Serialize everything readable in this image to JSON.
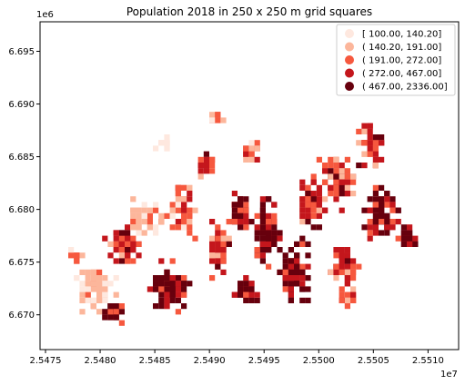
{
  "chart_data": {
    "type": "heatmap",
    "title": "Population 2018 in 250 x 250 m grid squares",
    "xlabel": "",
    "ylabel": "",
    "x_offset_label": "1e7",
    "y_offset_label": "1e6",
    "xlim": [
      2.54745,
      2.55128
    ],
    "ylim": [
      6.6667,
      6.6978
    ],
    "x_ticks": [
      {
        "value": 2.5475,
        "label": "2.5475"
      },
      {
        "value": 2.548,
        "label": "2.5480"
      },
      {
        "value": 2.5485,
        "label": "2.5485"
      },
      {
        "value": 2.549,
        "label": "2.5490"
      },
      {
        "value": 2.5495,
        "label": "2.5495"
      },
      {
        "value": 2.55,
        "label": "2.5500"
      },
      {
        "value": 2.5505,
        "label": "2.5505"
      },
      {
        "value": 2.551,
        "label": "2.5510"
      }
    ],
    "y_ticks": [
      {
        "value": 6.67,
        "label": "6.670"
      },
      {
        "value": 6.675,
        "label": "6.675"
      },
      {
        "value": 6.68,
        "label": "6.680"
      },
      {
        "value": 6.685,
        "label": "6.685"
      },
      {
        "value": 6.69,
        "label": "6.690"
      },
      {
        "value": 6.695,
        "label": "6.695"
      }
    ],
    "grid": false,
    "legend_position": "top-right",
    "legend": [
      {
        "label": "[ 100.00,  140.20]",
        "color": "#fee8df"
      },
      {
        "label": "( 140.20,  191.00]",
        "color": "#fcb69b"
      },
      {
        "label": "( 191.00,  272.00]",
        "color": "#f6583e"
      },
      {
        "label": "( 272.00,  467.00]",
        "color": "#c4161c"
      },
      {
        "label": "( 467.00, 2336.00]",
        "color": "#67000d"
      }
    ],
    "clusters": [
      {
        "x": 2.54775,
        "y": 6.6757,
        "spread_x": 6e-05,
        "spread_y": 0.0008,
        "count": 10,
        "dominant_class": 2
      },
      {
        "x": 2.54795,
        "y": 6.6725,
        "spread_x": 0.00022,
        "spread_y": 0.003,
        "count": 70,
        "dominant_class": 1
      },
      {
        "x": 2.5481,
        "y": 6.6705,
        "spread_x": 0.00012,
        "spread_y": 0.0012,
        "count": 30,
        "dominant_class": 4
      },
      {
        "x": 2.5482,
        "y": 6.677,
        "spread_x": 0.00018,
        "spread_y": 0.0022,
        "count": 55,
        "dominant_class": 3
      },
      {
        "x": 2.5484,
        "y": 6.6793,
        "spread_x": 0.00025,
        "spread_y": 0.0025,
        "count": 45,
        "dominant_class": 1
      },
      {
        "x": 2.5486,
        "y": 6.673,
        "spread_x": 0.00022,
        "spread_y": 0.003,
        "count": 90,
        "dominant_class": 4
      },
      {
        "x": 2.5487,
        "y": 6.6805,
        "spread_x": 0.00018,
        "spread_y": 0.0035,
        "count": 50,
        "dominant_class": 2
      },
      {
        "x": 2.54855,
        "y": 6.6865,
        "spread_x": 0.0001,
        "spread_y": 0.0012,
        "count": 12,
        "dominant_class": 0
      },
      {
        "x": 2.54905,
        "y": 6.6762,
        "spread_x": 0.00015,
        "spread_y": 0.0035,
        "count": 55,
        "dominant_class": 3
      },
      {
        "x": 2.54925,
        "y": 6.68,
        "spread_x": 0.00012,
        "spread_y": 0.0025,
        "count": 40,
        "dominant_class": 4
      },
      {
        "x": 2.5493,
        "y": 6.6725,
        "spread_x": 0.00015,
        "spread_y": 0.0015,
        "count": 35,
        "dominant_class": 4
      },
      {
        "x": 2.5495,
        "y": 6.678,
        "spread_x": 0.00015,
        "spread_y": 0.004,
        "count": 75,
        "dominant_class": 4
      },
      {
        "x": 2.54975,
        "y": 6.6745,
        "spread_x": 0.00018,
        "spread_y": 0.0035,
        "count": 80,
        "dominant_class": 4
      },
      {
        "x": 2.5499,
        "y": 6.6808,
        "spread_x": 0.00018,
        "spread_y": 0.003,
        "count": 60,
        "dominant_class": 3
      },
      {
        "x": 2.55015,
        "y": 6.683,
        "spread_x": 0.0002,
        "spread_y": 0.003,
        "count": 70,
        "dominant_class": 3
      },
      {
        "x": 2.5502,
        "y": 6.6752,
        "spread_x": 0.00015,
        "spread_y": 0.003,
        "count": 45,
        "dominant_class": 3
      },
      {
        "x": 2.55045,
        "y": 6.6865,
        "spread_x": 0.00015,
        "spread_y": 0.003,
        "count": 55,
        "dominant_class": 3
      },
      {
        "x": 2.55055,
        "y": 6.68,
        "spread_x": 0.0002,
        "spread_y": 0.003,
        "count": 70,
        "dominant_class": 4
      },
      {
        "x": 2.5508,
        "y": 6.6775,
        "spread_x": 0.00012,
        "spread_y": 0.0012,
        "count": 25,
        "dominant_class": 4
      },
      {
        "x": 2.55025,
        "y": 6.672,
        "spread_x": 0.00012,
        "spread_y": 0.0015,
        "count": 20,
        "dominant_class": 2
      },
      {
        "x": 2.54935,
        "y": 6.6857,
        "spread_x": 0.00015,
        "spread_y": 0.0015,
        "count": 20,
        "dominant_class": 2
      },
      {
        "x": 2.54905,
        "y": 6.689,
        "spread_x": 8e-05,
        "spread_y": 0.001,
        "count": 10,
        "dominant_class": 2
      },
      {
        "x": 2.54895,
        "y": 6.6845,
        "spread_x": 0.00012,
        "spread_y": 0.0015,
        "count": 18,
        "dominant_class": 3
      }
    ]
  }
}
